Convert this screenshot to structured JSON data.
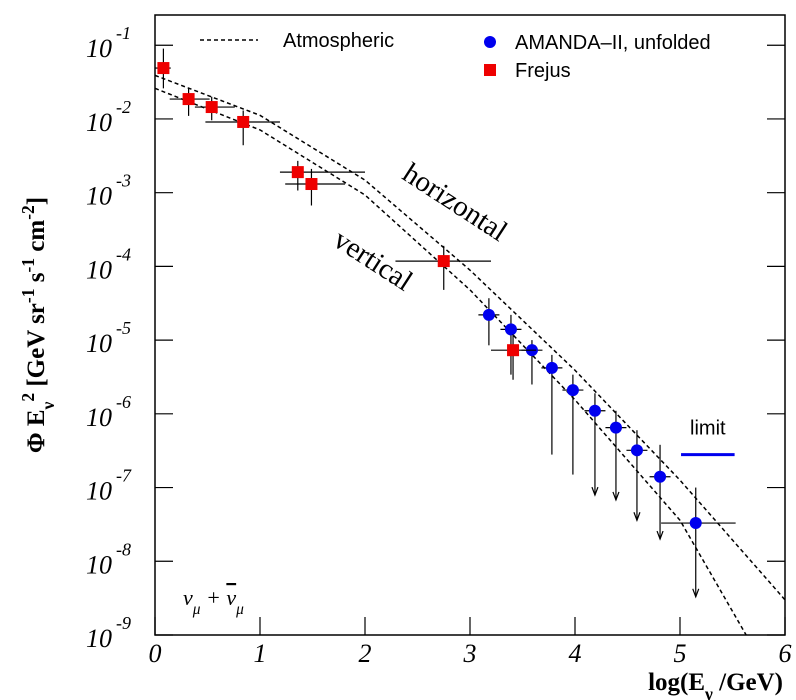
{
  "chart_data": {
    "type": "scatter",
    "log_y": true,
    "xlim": [
      0,
      6
    ],
    "ylim": [
      1e-09,
      0.257
    ],
    "xticks": [
      0,
      1,
      2,
      3,
      4,
      5,
      6
    ],
    "yticks": [
      {
        "value": 0.1,
        "label": "10",
        "sup": "-1"
      },
      {
        "value": 0.01,
        "label": "10",
        "sup": "-2"
      },
      {
        "value": 0.001,
        "label": "10",
        "sup": "-3"
      },
      {
        "value": 0.0001,
        "label": "10",
        "sup": "-4"
      },
      {
        "value": 1e-05,
        "label": "10",
        "sup": "-5"
      },
      {
        "value": 1e-06,
        "label": "10",
        "sup": "-6"
      },
      {
        "value": 1e-07,
        "label": "10",
        "sup": "-7"
      },
      {
        "value": 1e-08,
        "label": "10",
        "sup": "-8"
      },
      {
        "value": 1e-09,
        "label": "10",
        "sup": "-9"
      }
    ],
    "xlabel": [
      {
        "text": "log(E"
      },
      {
        "text": "ν",
        "shift": "sub"
      },
      {
        "text": " /GeV)"
      }
    ],
    "ylabel": [
      {
        "text": "Φ E"
      },
      {
        "text": "ν",
        "shift": "sub"
      },
      {
        "text": "2",
        "shift": "super"
      },
      {
        "text": " [GeV sr"
      },
      {
        "text": "-1",
        "shift": "super"
      },
      {
        "text": " s"
      },
      {
        "text": "-1",
        "shift": "super"
      },
      {
        "text": " cm"
      },
      {
        "text": "-2",
        "shift": "super"
      },
      {
        "text": "]"
      }
    ],
    "lines": {
      "name": "Atmospheric",
      "color": "#000000",
      "curves": [
        {
          "label": "horizontal",
          "x": [
            0,
            1,
            2,
            3,
            4,
            5,
            6
          ],
          "values": [
            0.039,
            0.0112,
            0.00148,
            8.9e-05,
            3.9e-06,
            1.26e-07,
            3e-09
          ]
        },
        {
          "label": "vertical",
          "x": [
            0,
            1,
            2,
            3,
            4,
            5,
            5.63
          ],
          "values": [
            0.026,
            0.0071,
            0.00093,
            4.8e-05,
            1.55e-06,
            3.6e-08,
            1e-09
          ]
        }
      ]
    },
    "series": [
      {
        "name": "AMANDA–II, unfolded",
        "color": "#0000ee",
        "marker": "circle",
        "x": [
          3.18,
          3.39,
          3.59,
          3.78,
          3.98,
          4.19,
          4.39,
          4.59,
          4.81,
          5.15
        ],
        "values": [
          2.2e-05,
          1.4e-05,
          7.3e-06,
          4.2e-06,
          2.1e-06,
          1.1e-06,
          6.5e-07,
          3.2e-07,
          1.4e-07,
          3.3e-08
        ],
        "xlow": [
          3.08,
          3.29,
          3.49,
          3.68,
          3.88,
          4.09,
          4.29,
          4.49,
          4.71,
          4.82
        ],
        "xhigh": [
          3.28,
          3.49,
          3.69,
          3.88,
          4.08,
          4.29,
          4.49,
          4.69,
          4.91,
          5.53
        ],
        "ylow": [
          8.5e-06,
          3.4e-06,
          2.5e-06,
          2.8e-07,
          1.5e-07,
          7.9e-08,
          6.8e-08,
          3.6e-08,
          2e-08,
          3.3e-09
        ],
        "yhigh": [
          3.7e-05,
          2.2e-05,
          1e-05,
          6.3e-06,
          3.4e-06,
          1.9e-06,
          1.1e-06,
          6e-07,
          3.8e-07,
          1e-07
        ],
        "arrow": [
          false,
          false,
          false,
          false,
          false,
          true,
          true,
          true,
          true,
          true
        ]
      },
      {
        "name": "Frejus",
        "color": "#ee0000",
        "marker": "square",
        "x": [
          0.08,
          0.32,
          0.54,
          0.84,
          1.36,
          1.49,
          2.75,
          3.41
        ],
        "values": [
          0.049,
          0.0186,
          0.0145,
          0.0091,
          0.0019,
          0.00131,
          0.000118,
          7.3e-06
        ],
        "xlow": [
          0.0,
          0.14,
          0.38,
          0.48,
          1.19,
          1.24,
          2.29,
          3.2
        ],
        "xhigh": [
          0.15,
          0.52,
          0.76,
          1.19,
          2.0,
          1.81,
          3.2,
          3.63
        ],
        "ylow": [
          0.026,
          0.011,
          0.0096,
          0.0044,
          0.00107,
          0.00067,
          4.8e-05,
          2.9e-06
        ],
        "yhigh": [
          0.09,
          0.026,
          0.02,
          0.013,
          0.0027,
          0.0021,
          0.00019,
          1.2e-05
        ],
        "arrow": [
          false,
          false,
          false,
          false,
          false,
          false,
          false,
          false
        ]
      }
    ],
    "limit": {
      "label": "limit",
      "color": "#0000ee",
      "x": [
        5.01,
        5.52
      ],
      "value": 2.8e-07
    },
    "annotation": [
      {
        "text": "ν"
      },
      {
        "text": "μ",
        "shift": "sub"
      },
      {
        "text": " + "
      },
      {
        "text": "ν",
        "shift": "overline"
      },
      {
        "text": "μ",
        "shift": "sub"
      }
    ]
  }
}
